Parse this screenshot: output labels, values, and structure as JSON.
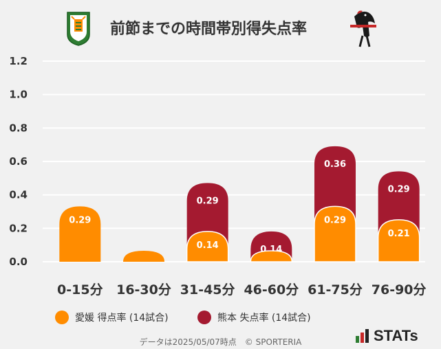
{
  "title": "前節までの時間帯別得失点率",
  "footer": "データは2025/05/07時点　© SPORTERIA",
  "brand": {
    "stats": "STATs"
  },
  "colors": {
    "ehime": "#ff8c00",
    "kumamoto": "#a41a30",
    "grid": "#ffffff",
    "background": "#f1f1f1"
  },
  "chart_data": {
    "type": "bar",
    "title": "前節までの時間帯別得失点率",
    "categories": [
      "0-15分",
      "16-30分",
      "31-45分",
      "46-60分",
      "61-75分",
      "76-90分"
    ],
    "series": [
      {
        "name": "愛媛 得点率 (14試合)",
        "values": [
          0.29,
          0.0,
          0.14,
          0.0,
          0.29,
          0.21
        ],
        "labels": [
          "0.29",
          "",
          "0.14",
          "",
          "0.29",
          "0.21"
        ]
      },
      {
        "name": "熊本 失点率 (14試合)",
        "values": [
          0.0,
          0.0,
          0.29,
          0.14,
          0.36,
          0.29
        ],
        "labels": [
          "",
          "",
          "0.29",
          "0.14",
          "0.36",
          "0.29"
        ]
      }
    ],
    "y_ticks": [
      "1.2",
      "1.0",
      "0.8",
      "0.6",
      "0.4",
      "0.2",
      "0.0"
    ],
    "ylim": [
      0,
      1.2
    ],
    "grid": true,
    "legend_position": "bottom"
  },
  "legend": [
    {
      "label": "愛媛 得点率 (14試合)",
      "color": "#ff8c00"
    },
    {
      "label": "熊本 失点率 (14試合)",
      "color": "#a41a30"
    }
  ]
}
